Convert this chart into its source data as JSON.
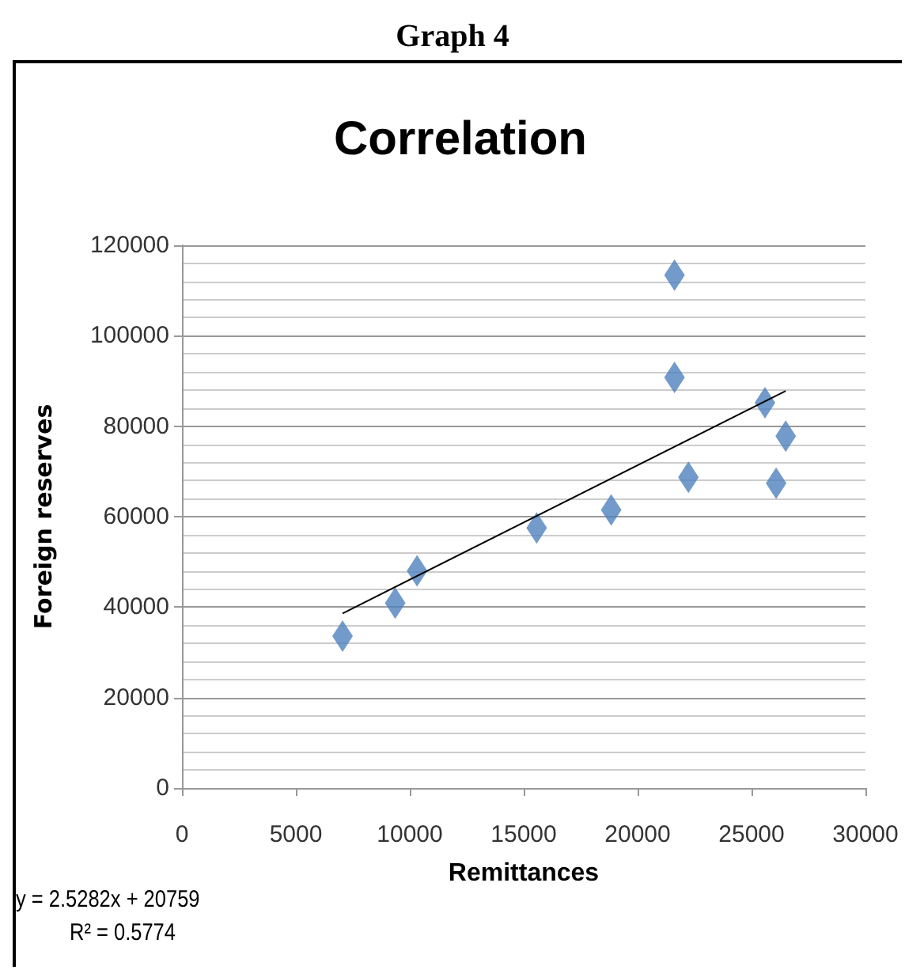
{
  "chart_data": {
    "type": "scatter",
    "title": "Correlation",
    "xlabel": "Remittances",
    "ylabel": "Foreign reserves",
    "annotations": [
      "Graph 4",
      "y = 2.5282x + 20759",
      "R² = 0.5774"
    ],
    "marker": "diamond",
    "grid": "y",
    "xlim": [
      0,
      30000
    ],
    "xticks": [
      0,
      5000,
      10000,
      15000,
      20000,
      25000,
      30000
    ],
    "ylim": [
      0,
      120000
    ],
    "yticks": [
      0,
      20000,
      40000,
      60000,
      80000,
      100000,
      120000
    ],
    "series": [
      {
        "color": "#4f81bd",
        "x": [
          7050,
          9360,
          10320,
          15570,
          18840,
          21620,
          21620,
          22230,
          25590,
          26080,
          26500
        ],
        "values": [
          33600,
          40900,
          48000,
          57500,
          61500,
          113400,
          90800,
          68700,
          85200,
          67400,
          77800
        ]
      },
      {
        "type": "line",
        "color": "#000000",
        "marker": "none",
        "x": [
          7050,
          26500
        ],
        "values": [
          38600,
          87800
        ]
      }
    ]
  }
}
